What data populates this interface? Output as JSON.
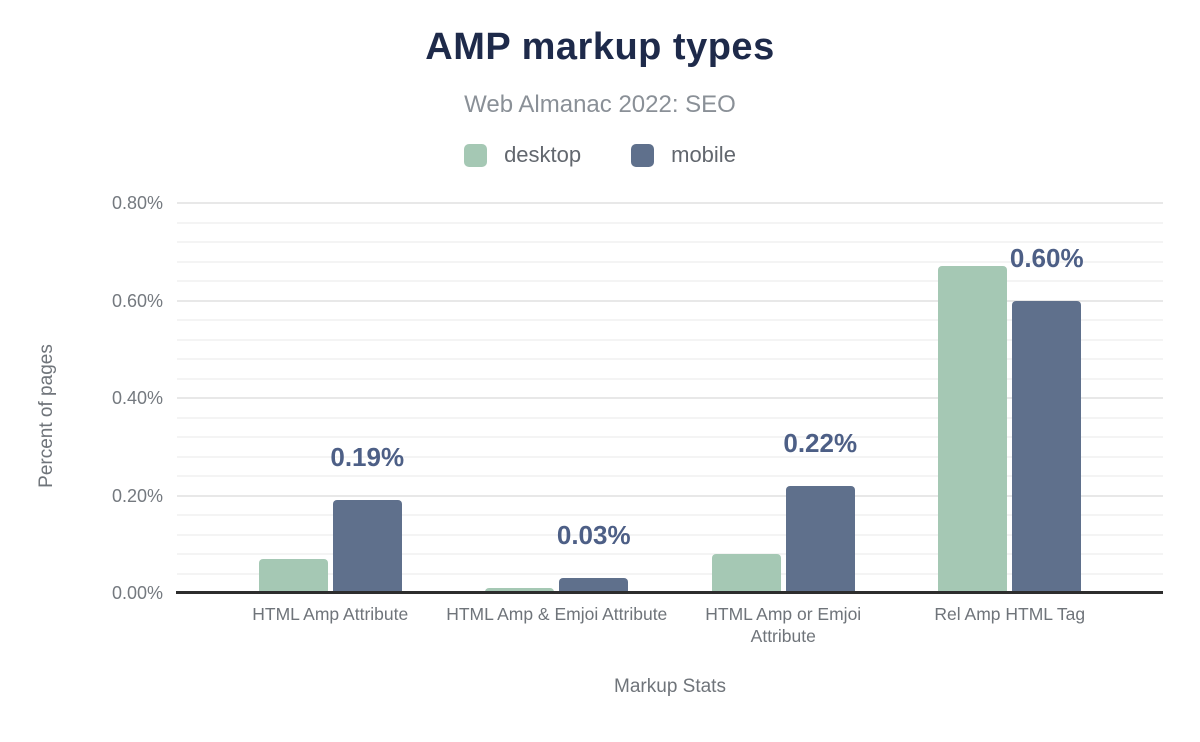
{
  "chart_data": {
    "type": "bar",
    "title": "AMP markup types",
    "subtitle": "Web Almanac 2022: SEO",
    "xlabel": "Markup Stats",
    "ylabel": "Percent of pages",
    "categories": [
      "HTML Amp Attribute",
      "HTML Amp & Emjoi Attribute",
      "HTML Amp or Emjoi Attribute",
      "Rel Amp HTML Tag"
    ],
    "series": [
      {
        "name": "desktop",
        "color": "#a5c8b4",
        "values": [
          0.07,
          0.01,
          0.08,
          0.67
        ]
      },
      {
        "name": "mobile",
        "color": "#5f708c",
        "values": [
          0.19,
          0.03,
          0.22,
          0.6
        ],
        "labels": [
          "0.19%",
          "0.03%",
          "0.22%",
          "0.60%"
        ]
      }
    ],
    "ylim": [
      0,
      0.8
    ],
    "yticks": [
      {
        "v": 0.0,
        "label": "0.00%"
      },
      {
        "v": 0.2,
        "label": "0.20%"
      },
      {
        "v": 0.4,
        "label": "0.40%"
      },
      {
        "v": 0.6,
        "label": "0.60%"
      },
      {
        "v": 0.8,
        "label": "0.80%"
      }
    ],
    "grid": {
      "major_step": 0.2,
      "minor_step": 0.04
    },
    "legend_position": "top",
    "colors": {
      "title": "#1e2a4a",
      "subtitle": "#8a9097",
      "data_label": "#4d5f86",
      "axis_line": "#2d2d2d",
      "tick_text": "#74797f"
    }
  }
}
